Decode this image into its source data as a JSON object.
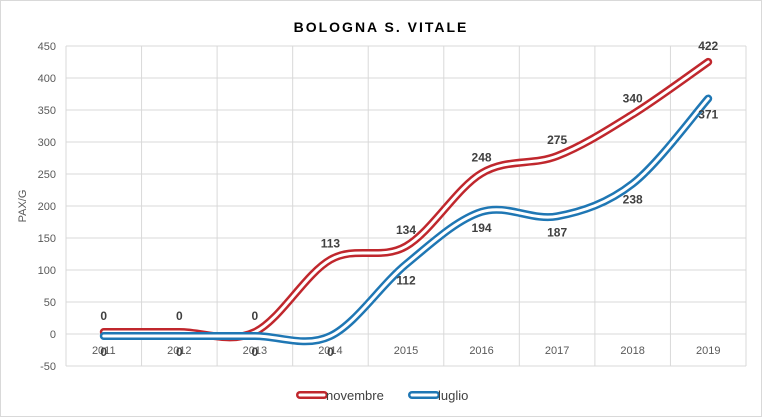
{
  "chart_data": {
    "type": "line",
    "title": "BOLOGNA S. VITALE",
    "xlabel": "",
    "ylabel": "PAX/G",
    "x": [
      "2011",
      "2012",
      "2013",
      "2014",
      "2015",
      "2016",
      "2017",
      "2018",
      "2019"
    ],
    "ylim": [
      -50,
      450
    ],
    "yticks": [
      -50,
      0,
      50,
      100,
      150,
      200,
      250,
      300,
      350,
      400,
      450
    ],
    "grid": true,
    "smooth": true,
    "legend_position": "bottom",
    "series": [
      {
        "name": "novembre",
        "color": "#c0272d",
        "values": [
          0,
          0,
          0,
          113,
          134,
          248,
          275,
          340,
          422
        ]
      },
      {
        "name": "luglio",
        "color": "#1f77b4",
        "values": [
          0,
          0,
          0,
          0,
          112,
          194,
          187,
          238,
          371
        ]
      }
    ]
  }
}
